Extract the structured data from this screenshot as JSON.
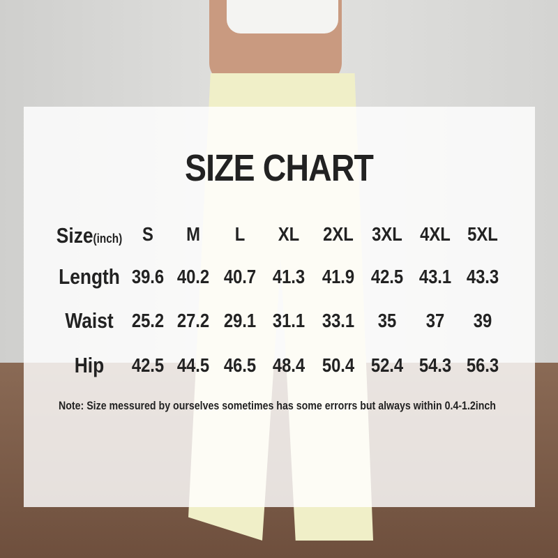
{
  "title": "SIZE CHART",
  "table": {
    "header_label": "Size",
    "header_unit": "(inch)",
    "sizes": [
      "S",
      "M",
      "L",
      "XL",
      "2XL",
      "3XL",
      "4XL",
      "5XL"
    ],
    "rows": [
      {
        "label": "Length",
        "values": [
          "39.6",
          "40.2",
          "40.7",
          "41.3",
          "41.9",
          "42.5",
          "43.1",
          "43.3"
        ]
      },
      {
        "label": "Waist",
        "values": [
          "25.2",
          "27.2",
          "29.1",
          "31.1",
          "33.1",
          "35",
          "37",
          "39"
        ]
      },
      {
        "label": "Hip",
        "values": [
          "42.5",
          "44.5",
          "46.5",
          "48.4",
          "50.4",
          "52.4",
          "54.3",
          "56.3"
        ]
      }
    ]
  },
  "note": "Note:  Size messured by ourselves sometimes has some errorrs but always within 0.4-1.2inch",
  "colors": {
    "panel": "#ffffff",
    "text": "#222222",
    "pants": "#f0efc8",
    "floor": "#7a5a46"
  }
}
